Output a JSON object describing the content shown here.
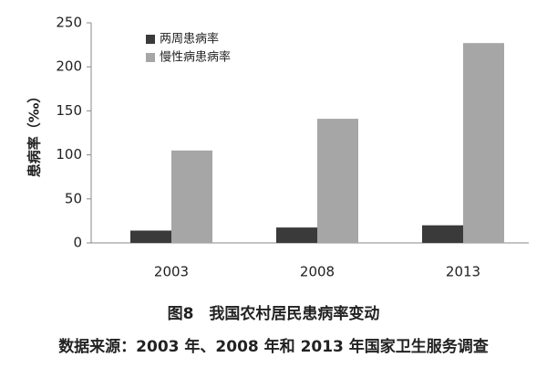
{
  "chart_data": {
    "type": "bar",
    "title": "图8　我国农村居民患病率变动",
    "subtitle": "数据来源：2003 年、2008 年和 2013 年国家卫生服务调查",
    "y_label": "患病率（‰）",
    "categories": [
      "2003",
      "2008",
      "2013"
    ],
    "series": [
      {
        "name": "两周患病率",
        "color": "#3a3a3a",
        "values": [
          14,
          17.5,
          20
        ]
      },
      {
        "name": "慢性病患病率",
        "color": "#a6a6a6",
        "values": [
          105,
          141,
          227
        ]
      }
    ],
    "ylim": [
      0,
      250
    ],
    "yticks": [
      0,
      50,
      100,
      150,
      200,
      250
    ],
    "grid": false,
    "legend": "top-left"
  }
}
